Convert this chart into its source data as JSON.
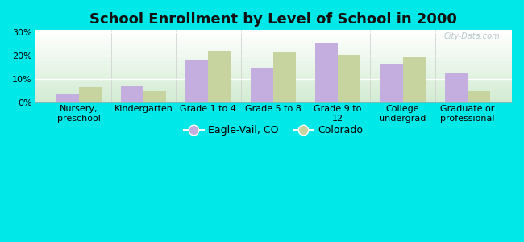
{
  "title": "School Enrollment by Level of School in 2000",
  "categories": [
    "Nursery,\npreschool",
    "Kindergarten",
    "Grade 1 to 4",
    "Grade 5 to 8",
    "Grade 9 to\n12",
    "College\nundergrad",
    "Graduate or\nprofessional"
  ],
  "eagle_vail": [
    4.0,
    7.0,
    18.0,
    15.0,
    25.5,
    16.5,
    13.0
  ],
  "colorado": [
    6.5,
    5.0,
    22.0,
    21.5,
    20.5,
    19.5,
    5.0
  ],
  "bar_color_eagle": "#c4aee0",
  "bar_color_colorado": "#c8d4a0",
  "bg_color": "#00e8e8",
  "yticks": [
    0,
    10,
    20,
    30
  ],
  "ylim": [
    0,
    31
  ],
  "legend_eagle": "Eagle-Vail, CO",
  "legend_colorado": "Colorado",
  "bar_width": 0.35,
  "title_fontsize": 13,
  "tick_fontsize": 8,
  "watermark": "City-Data.com"
}
